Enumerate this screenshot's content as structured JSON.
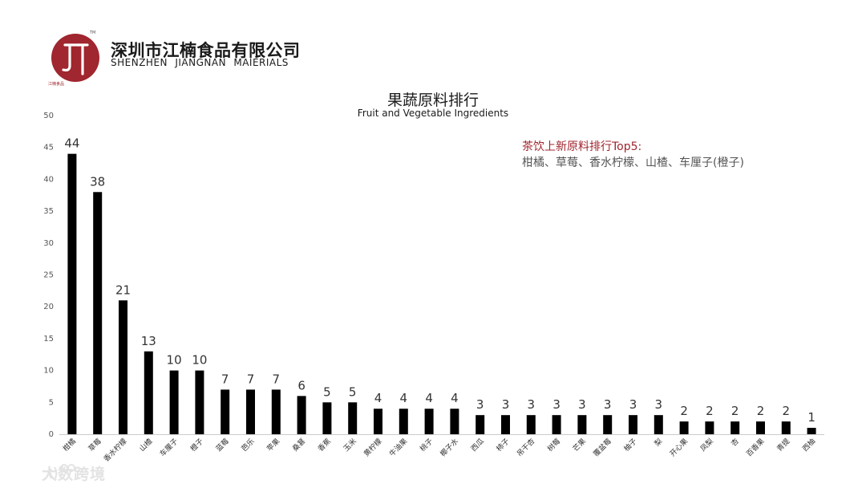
{
  "company": {
    "name_cn": "深圳市江楠食品有限公司",
    "name_en": "SHENZHEN  JIANGNAN  MAIERIALS",
    "logo_tm": "TM",
    "logo_caption": "江楠食品"
  },
  "note": {
    "heading": "茶饮上新原料排行Top5:",
    "body": "柑橘、草莓、香水柠檬、山楂、车厘子(橙子)"
  },
  "watermark": {
    "text": "大数跨境"
  },
  "colors": {
    "bar": "#000000",
    "brand": "#a0262f",
    "axis": "#cccccc"
  },
  "chart_data": {
    "type": "bar",
    "title": "果蔬原料排行",
    "subtitle": "Fruit and Vegetable Ingredients",
    "xlabel": "",
    "ylabel": "",
    "ylim": [
      0,
      50
    ],
    "yticks": [
      0,
      5,
      10,
      15,
      20,
      25,
      30,
      35,
      40,
      45,
      50
    ],
    "grid": false,
    "categories": [
      "柑橘",
      "草莓",
      "香水柠檬",
      "山楂",
      "车厘子",
      "橙子",
      "蓝莓",
      "芭乐",
      "苹果",
      "桑葚",
      "香蕉",
      "玉米",
      "黄柠檬",
      "牛油果",
      "桃子",
      "椰子水",
      "西瓜",
      "柿子",
      "吊干杏",
      "树莓",
      "芒果",
      "覆盆莓",
      "柚子",
      "梨",
      "开心果",
      "凤梨",
      "杏",
      "百香果",
      "青提",
      "西柚"
    ],
    "values": [
      44,
      38,
      21,
      13,
      10,
      10,
      7,
      7,
      7,
      6,
      5,
      5,
      4,
      4,
      4,
      4,
      3,
      3,
      3,
      3,
      3,
      3,
      3,
      3,
      2,
      2,
      2,
      2,
      2,
      1
    ]
  }
}
